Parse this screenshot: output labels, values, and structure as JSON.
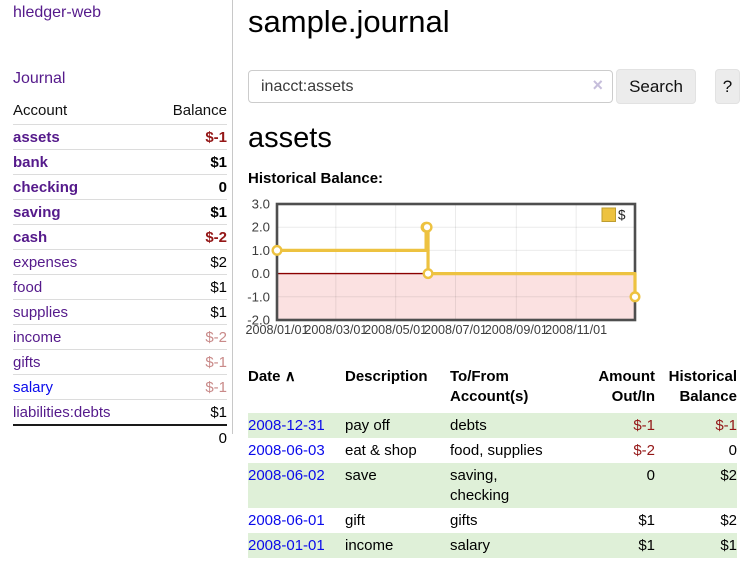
{
  "app": {
    "title": "hledger-web",
    "nav": "Journal"
  },
  "sidebar": {
    "col_account": "Account",
    "col_balance": "Balance",
    "accounts": [
      {
        "name": "assets",
        "depth": 1,
        "balance": "$-1",
        "bold": true,
        "tone": "neg-strong",
        "link": "purple"
      },
      {
        "name": "bank",
        "depth": 2,
        "balance": "$1",
        "bold": true,
        "tone": "",
        "link": "purple"
      },
      {
        "name": "checking",
        "depth": 3,
        "balance": "0",
        "bold": true,
        "tone": "",
        "link": "purple"
      },
      {
        "name": "saving",
        "depth": 3,
        "balance": "$1",
        "bold": true,
        "tone": "",
        "link": "purple"
      },
      {
        "name": "cash",
        "depth": 2,
        "balance": "$-2",
        "bold": true,
        "tone": "neg-strong",
        "link": "purple"
      },
      {
        "name": "expenses",
        "depth": 1,
        "balance": "$2",
        "bold": false,
        "tone": "",
        "link": "purple"
      },
      {
        "name": "food",
        "depth": 2,
        "balance": "$1",
        "bold": false,
        "tone": "",
        "link": "purple"
      },
      {
        "name": "supplies",
        "depth": 2,
        "balance": "$1",
        "bold": false,
        "tone": "",
        "link": "purple"
      },
      {
        "name": "income",
        "depth": 1,
        "balance": "$-2",
        "bold": false,
        "tone": "neg-soft",
        "link": "purple"
      },
      {
        "name": "gifts",
        "depth": 2,
        "balance": "$-1",
        "bold": false,
        "tone": "neg-soft",
        "link": "purple"
      },
      {
        "name": "salary",
        "depth": 2,
        "balance": "$-1",
        "bold": false,
        "tone": "neg-soft",
        "link": "blue"
      },
      {
        "name": "liabilities:debts",
        "depth": 1,
        "balance": "$1",
        "bold": false,
        "tone": "",
        "link": "purple"
      }
    ],
    "total": "0"
  },
  "header": {
    "title": "sample.journal"
  },
  "search": {
    "value": "inacct:assets",
    "clear_icon": "×",
    "button_label": "Search",
    "help_label": "?"
  },
  "account_page": {
    "heading": "assets",
    "chart_label": "Historical Balance:"
  },
  "chart_data": {
    "type": "line",
    "step": true,
    "title": "Historical Balance",
    "series": [
      {
        "name": "$",
        "color": "#edc240",
        "points": [
          [
            "2008-01-01",
            1
          ],
          [
            "2008-06-01",
            2
          ],
          [
            "2008-06-02",
            2
          ],
          [
            "2008-06-03",
            0
          ],
          [
            "2008-12-31",
            -1
          ]
        ]
      }
    ],
    "x_ticks": [
      "2008/01/01",
      "2008/03/01",
      "2008/05/01",
      "2008/07/01",
      "2008/09/01",
      "2008/11/01"
    ],
    "y_ticks": [
      "3.0",
      "2.0",
      "1.0",
      "0.0",
      "-1.0",
      "-2.0"
    ],
    "ylim": [
      -2,
      3
    ],
    "xlim": [
      "2008-01-01",
      "2008-12-31"
    ],
    "grid": true,
    "legend_position": "top-right",
    "legend_label": "$",
    "negative_region_fill": "#fbe1e1",
    "zero_line_color": "#8b0000"
  },
  "register": {
    "columns": {
      "date": "Date",
      "description": "Description",
      "accounts": "To/From Account(s)",
      "amount": "Amount Out/In",
      "balance": "Historical Balance"
    },
    "sort_icon": "∧",
    "rows": [
      {
        "date": "2008-12-31",
        "description": "pay off",
        "accounts": "debts",
        "amount": "$-1",
        "amount_neg": true,
        "balance": "$-1",
        "balance_neg": true,
        "shaded": true
      },
      {
        "date": "2008-06-03",
        "description": "eat & shop",
        "accounts": "food, supplies",
        "amount": "$-2",
        "amount_neg": true,
        "balance": "0",
        "balance_neg": false,
        "shaded": false
      },
      {
        "date": "2008-06-02",
        "description": "save",
        "accounts": "saving,\nchecking",
        "amount": "0",
        "amount_neg": false,
        "balance": "$2",
        "balance_neg": false,
        "shaded": true
      },
      {
        "date": "2008-06-01",
        "description": "gift",
        "accounts": "gifts",
        "amount": "$1",
        "amount_neg": false,
        "balance": "$2",
        "balance_neg": false,
        "shaded": false
      },
      {
        "date": "2008-01-01",
        "description": "income",
        "accounts": "salary",
        "amount": "$1",
        "amount_neg": false,
        "balance": "$1",
        "balance_neg": false,
        "shaded": true
      }
    ]
  },
  "colors": {
    "link_purple": "#551a8b",
    "link_blue": "#0b0beb",
    "negative_strong": "#941717",
    "negative_soft": "#c98a89",
    "row_shade_green": "#dff0d8",
    "chart_series_yellow": "#edc240",
    "chart_negative_fill": "#fbe1e1",
    "chart_zero_line": "#8b0000"
  }
}
